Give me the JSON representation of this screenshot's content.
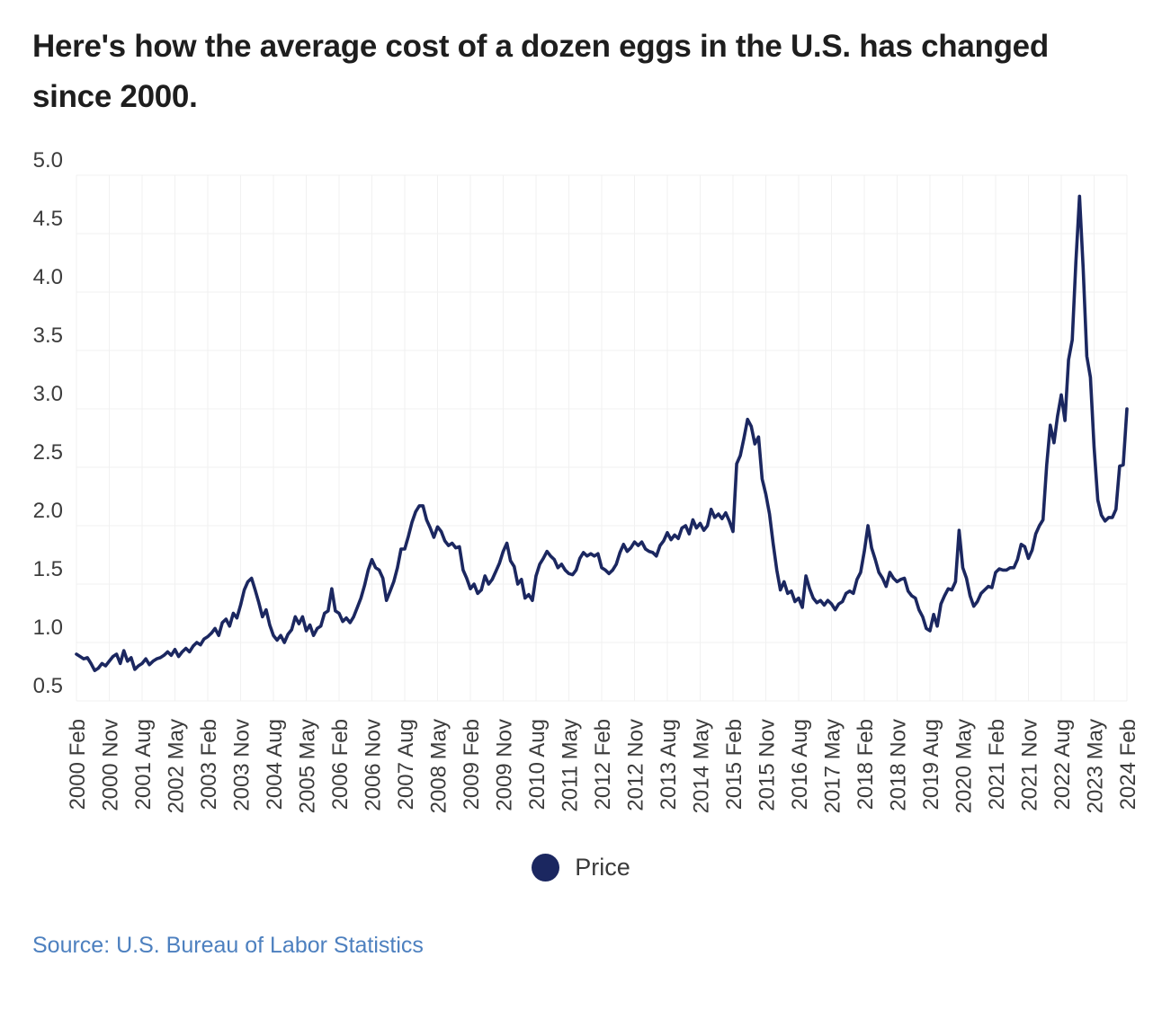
{
  "title": "Here's how the average cost of a dozen eggs in the U.S. has changed since 2000.",
  "legend": {
    "series_label": "Price"
  },
  "source": {
    "text": "Source: U.S. Bureau of Labor Statistics"
  },
  "colors": {
    "line": "#1b2760",
    "legend_dot": "#1b2760",
    "grid": "#f1f1f1",
    "axis_text": "#3c3c3c",
    "title_text": "#1e1e1e",
    "source_link": "#4d80bf",
    "background": "#ffffff"
  },
  "chart_data": {
    "type": "line",
    "title": "Average cost of a dozen eggs in the U.S. (dollars)",
    "grid": true,
    "legend_position": "bottom",
    "ylim": [
      0.5,
      5.0
    ],
    "y_ticks": [
      0.5,
      1.0,
      1.5,
      2.0,
      2.5,
      3.0,
      3.5,
      4.0,
      4.5,
      5.0
    ],
    "xlabel": "",
    "ylabel": "",
    "x_tick_labels": [
      "2000 Feb",
      "2000 Nov",
      "2001 Aug",
      "2002 May",
      "2003 Feb",
      "2003 Nov",
      "2004 Aug",
      "2005 May",
      "2006 Feb",
      "2006 Nov",
      "2007 Aug",
      "2008 May",
      "2009 Feb",
      "2009 Nov",
      "2010 Aug",
      "2011 May",
      "2012 Feb",
      "2012 Nov",
      "2013 Aug",
      "2014 May",
      "2015 Feb",
      "2015 Nov",
      "2016 Aug",
      "2017 May",
      "2018 Feb",
      "2018 Nov",
      "2019 Aug",
      "2020 May",
      "2021 Feb",
      "2021 Nov",
      "2022 Aug",
      "2023 May",
      "2024 Feb"
    ],
    "x_tick_every_n_points": 9,
    "series": [
      {
        "name": "Price",
        "frequency": "monthly",
        "start_month": "2000 Feb",
        "end_month": "2024 Feb",
        "values": [
          0.9,
          0.88,
          0.86,
          0.87,
          0.82,
          0.76,
          0.78,
          0.82,
          0.8,
          0.84,
          0.88,
          0.9,
          0.82,
          0.93,
          0.84,
          0.87,
          0.77,
          0.8,
          0.82,
          0.86,
          0.81,
          0.84,
          0.86,
          0.87,
          0.89,
          0.92,
          0.89,
          0.94,
          0.88,
          0.92,
          0.95,
          0.92,
          0.97,
          1.0,
          0.98,
          1.03,
          1.05,
          1.08,
          1.12,
          1.06,
          1.17,
          1.2,
          1.14,
          1.25,
          1.21,
          1.32,
          1.45,
          1.52,
          1.55,
          1.45,
          1.34,
          1.22,
          1.28,
          1.15,
          1.06,
          1.02,
          1.06,
          1.0,
          1.07,
          1.11,
          1.22,
          1.16,
          1.22,
          1.1,
          1.15,
          1.06,
          1.12,
          1.14,
          1.25,
          1.27,
          1.46,
          1.27,
          1.25,
          1.18,
          1.21,
          1.17,
          1.22,
          1.3,
          1.38,
          1.49,
          1.62,
          1.71,
          1.64,
          1.62,
          1.55,
          1.36,
          1.44,
          1.52,
          1.64,
          1.8,
          1.8,
          1.91,
          2.03,
          2.12,
          2.17,
          2.17,
          2.05,
          1.98,
          1.9,
          1.99,
          1.95,
          1.87,
          1.83,
          1.85,
          1.81,
          1.82,
          1.62,
          1.55,
          1.46,
          1.5,
          1.42,
          1.45,
          1.57,
          1.5,
          1.54,
          1.61,
          1.68,
          1.78,
          1.85,
          1.7,
          1.65,
          1.5,
          1.54,
          1.38,
          1.41,
          1.36,
          1.57,
          1.67,
          1.72,
          1.78,
          1.74,
          1.71,
          1.64,
          1.67,
          1.62,
          1.59,
          1.58,
          1.62,
          1.72,
          1.77,
          1.74,
          1.76,
          1.74,
          1.76,
          1.64,
          1.62,
          1.59,
          1.62,
          1.67,
          1.77,
          1.84,
          1.78,
          1.81,
          1.86,
          1.83,
          1.86,
          1.8,
          1.78,
          1.77,
          1.74,
          1.83,
          1.87,
          1.94,
          1.88,
          1.92,
          1.89,
          1.98,
          2.0,
          1.93,
          2.05,
          1.98,
          2.02,
          1.96,
          2.0,
          2.14,
          2.07,
          2.1,
          2.06,
          2.11,
          2.04,
          1.95,
          2.53,
          2.6,
          2.75,
          2.91,
          2.85,
          2.7,
          2.76,
          2.4,
          2.27,
          2.1,
          1.85,
          1.62,
          1.45,
          1.52,
          1.42,
          1.44,
          1.35,
          1.38,
          1.3,
          1.57,
          1.46,
          1.38,
          1.34,
          1.36,
          1.32,
          1.36,
          1.33,
          1.28,
          1.33,
          1.35,
          1.42,
          1.44,
          1.42,
          1.54,
          1.6,
          1.78,
          2.0,
          1.81,
          1.71,
          1.6,
          1.55,
          1.48,
          1.6,
          1.55,
          1.52,
          1.54,
          1.55,
          1.44,
          1.4,
          1.38,
          1.28,
          1.22,
          1.12,
          1.1,
          1.24,
          1.14,
          1.33,
          1.4,
          1.46,
          1.45,
          1.52,
          1.96,
          1.64,
          1.55,
          1.4,
          1.31,
          1.35,
          1.42,
          1.45,
          1.48,
          1.47,
          1.6,
          1.63,
          1.62,
          1.62,
          1.64,
          1.64,
          1.71,
          1.84,
          1.82,
          1.72,
          1.79,
          1.93,
          2.0,
          2.05,
          2.52,
          2.86,
          2.71,
          2.94,
          3.12,
          2.9,
          3.42,
          3.59,
          4.25,
          4.82,
          4.21,
          3.45,
          3.27,
          2.67,
          2.22,
          2.09,
          2.04,
          2.07,
          2.07,
          2.14,
          2.51,
          2.52,
          3.0
        ]
      }
    ]
  }
}
